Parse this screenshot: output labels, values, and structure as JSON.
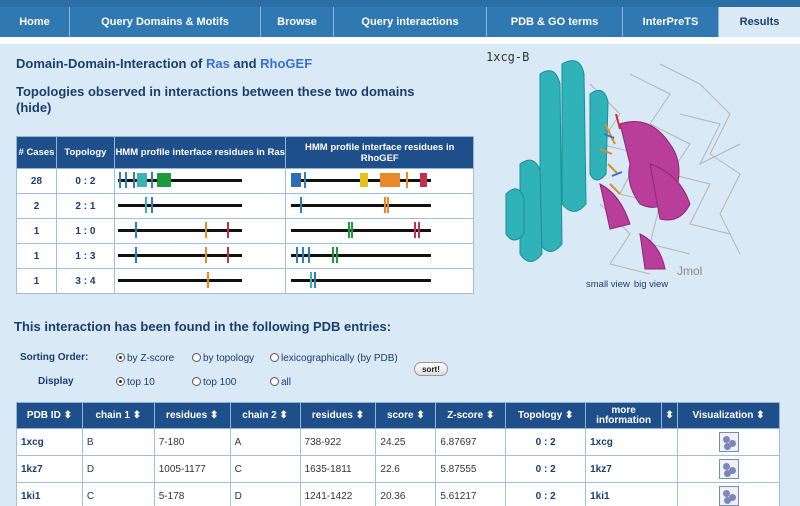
{
  "nav": {
    "tabs": [
      {
        "label": "Home"
      },
      {
        "label": "Query Domains & Motifs"
      },
      {
        "label": "Browse"
      },
      {
        "label": "Query interactions"
      },
      {
        "label": "PDB & GO terms"
      },
      {
        "label": "InterPreTS"
      },
      {
        "label": "Results"
      }
    ]
  },
  "title": {
    "prefix": "Domain-Domain-Interaction of ",
    "domain1": "Ras",
    "and": " and ",
    "domain2": "RhoGEF"
  },
  "topologies": {
    "heading": "Topologies observed in interactions between these two domains",
    "hide_link": "(hide)",
    "headers": [
      "# Cases",
      "Topology",
      "HMM profile interface residues in Ras",
      "HMM profile interface residues in RhoGEF"
    ],
    "rows": [
      {
        "cases": "28",
        "topology": "0 : 2"
      },
      {
        "cases": "2",
        "topology": "2 : 1"
      },
      {
        "cases": "1",
        "topology": "1 : 0"
      },
      {
        "cases": "1",
        "topology": "1 : 3"
      },
      {
        "cases": "1",
        "topology": "3 : 4"
      }
    ]
  },
  "structure": {
    "label": "1xcg-B",
    "jmol": "Jmol",
    "small_view": "small view",
    "big_view": "big view"
  },
  "pdb_section": {
    "heading": "This interaction has been found in the following PDB entries:",
    "sorting_label": "Sorting Order:",
    "sort_options": [
      "by Z-score",
      "by topology",
      "lexicographically (by PDB)"
    ],
    "display_label": "Display",
    "display_options": [
      "top 10",
      "top 100",
      "all"
    ],
    "sort_button": "sort!",
    "headers": [
      "PDB ID ⬍",
      "chain 1 ⬍",
      "residues ⬍",
      "chain 2 ⬍",
      "residues ⬍",
      "score ⬍",
      "Z-score ⬍",
      "Topology ⬍",
      "more information",
      "⬍",
      "Visualization ⬍"
    ],
    "rows": [
      {
        "pdb": "1xcg",
        "chain1": "B",
        "res1": "7-180",
        "chain2": "A",
        "res2": "738-922",
        "score": "24.25",
        "zscore": "6.87697",
        "topology": "0 : 2",
        "info": "1xcg"
      },
      {
        "pdb": "1kz7",
        "chain1": "D",
        "res1": "1005-1177",
        "chain2": "C",
        "res2": "1635-1811",
        "score": "22.6",
        "zscore": "5.87555",
        "topology": "0 : 2",
        "info": "1kz7"
      },
      {
        "pdb": "1ki1",
        "chain1": "C",
        "res1": "5-178",
        "chain2": "D",
        "res2": "1241-1422",
        "score": "20.36",
        "zscore": "5.61217",
        "topology": "0 : 2",
        "info": "1ki1"
      }
    ]
  }
}
